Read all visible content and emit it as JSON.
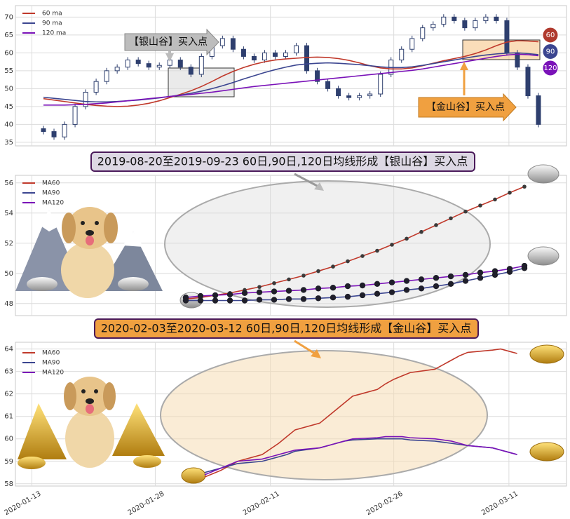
{
  "chart_data": [
    {
      "type": "candlestick",
      "candles": {
        "color": "#2e3f6e",
        "open": [
          38.8,
          38,
          36.5,
          40,
          45,
          49,
          52,
          55,
          56,
          58,
          57,
          56,
          56.5,
          58,
          56,
          54,
          59,
          62,
          64,
          61,
          59,
          58,
          60,
          59,
          60,
          62,
          55,
          52,
          50,
          48,
          47.5,
          48,
          48.5,
          54,
          58,
          61,
          64,
          67,
          68,
          70,
          69,
          67,
          69,
          70,
          69,
          60,
          56,
          48
        ],
        "high": [
          39.6,
          38.8,
          40.8,
          45.8,
          49.8,
          52.8,
          55.8,
          56.8,
          58.8,
          58.8,
          57.8,
          57.3,
          58.8,
          58.8,
          56.8,
          59.8,
          62.8,
          64.8,
          64.8,
          61.8,
          59.8,
          60.8,
          60.8,
          60.8,
          62.8,
          62.8,
          55.8,
          52.8,
          50.8,
          48.8,
          48.8,
          49.3,
          54.8,
          58.8,
          61.8,
          64.8,
          67.8,
          68.8,
          70.8,
          70.8,
          69.8,
          69.8,
          70.8,
          70.8,
          69.8,
          60.8,
          56.8,
          48.8
        ],
        "low": [
          37.2,
          35.7,
          35.7,
          39.2,
          44.2,
          48.2,
          51.2,
          54.2,
          55.2,
          56.2,
          55.2,
          55.2,
          55.7,
          55.2,
          53.2,
          53.2,
          58.2,
          61.2,
          60.2,
          58.2,
          57.2,
          57.2,
          58.2,
          58.2,
          59.2,
          54.2,
          51.2,
          49.2,
          47.2,
          46.7,
          46.7,
          47.2,
          47.7,
          53.2,
          57.2,
          60.2,
          63.2,
          66.2,
          67.2,
          68.2,
          66.2,
          66.2,
          68.2,
          68.2,
          59.2,
          55.2,
          47.2,
          39.2
        ],
        "close": [
          38,
          36.5,
          40,
          45,
          49,
          52,
          55,
          56,
          58,
          57,
          56,
          56.5,
          58,
          56,
          54,
          59,
          62,
          64,
          61,
          59,
          58,
          60,
          59,
          60,
          62,
          55,
          52,
          50,
          48,
          47.5,
          48,
          48.5,
          54,
          58,
          61,
          64,
          67,
          68,
          70,
          69,
          67,
          69,
          70,
          69,
          60,
          56,
          48,
          40
        ]
      },
      "series": [
        {
          "name": "60 ma",
          "color": "#c0392b",
          "values": [
            47.2,
            46.8,
            46.4,
            46,
            45.6,
            45.3,
            45.1,
            45,
            45.1,
            45.4,
            45.9,
            46.6,
            47.5,
            48.4,
            49.4,
            50.6,
            52,
            53.5,
            54.8,
            55.9,
            56.8,
            57.5,
            58,
            58.3,
            58.5,
            58.7,
            58.8,
            58.7,
            58.4,
            57.9,
            57.2,
            56.4,
            55.8,
            55.5,
            55.5,
            55.8,
            56.4,
            57.1,
            57.8,
            58.4,
            59,
            59.8,
            60.8,
            62,
            63,
            63.4,
            63.3,
            63.1
          ]
        },
        {
          "name": "90 ma",
          "color": "#3b4590",
          "values": [
            47.6,
            47.3,
            47,
            46.7,
            46.4,
            46.3,
            46.3,
            46.4,
            46.6,
            46.8,
            47.1,
            47.4,
            47.8,
            48.2,
            48.7,
            49.3,
            50,
            50.8,
            51.7,
            52.7,
            53.6,
            54.5,
            55.3,
            56,
            56.6,
            56.9,
            57.1,
            57.2,
            57.1,
            56.9,
            56.7,
            56.4,
            56.1,
            55.9,
            55.9,
            56.1,
            56.5,
            57,
            57.5,
            58,
            58.5,
            59,
            59.4,
            59.7,
            59.9,
            60,
            59.8,
            59.5
          ]
        },
        {
          "name": "120 ma",
          "color": "#7a12b8",
          "values": [
            45.4,
            45.4,
            45.4,
            45.5,
            45.6,
            45.8,
            46,
            46.3,
            46.6,
            46.9,
            47.2,
            47.5,
            47.8,
            48.1,
            48.4,
            48.7,
            49,
            49.4,
            49.8,
            50.2,
            50.6,
            50.9,
            51.2,
            51.5,
            51.8,
            52.1,
            52.4,
            52.7,
            53,
            53.3,
            53.6,
            53.9,
            54.2,
            54.5,
            54.8,
            55.1,
            55.5,
            56,
            56.5,
            57,
            57.5,
            58,
            58.5,
            59,
            59.4,
            59.6,
            59.5,
            59.2
          ]
        }
      ],
      "annotations": [
        "【银山谷】买入点",
        "【金山谷】买入点"
      ],
      "badges": [
        {
          "label": "60",
          "color": "#b03a2e"
        },
        {
          "label": "90",
          "color": "#3b4590"
        },
        {
          "label": "120",
          "color": "#7a12b8"
        }
      ],
      "ylim": [
        34,
        73.2
      ],
      "yticks": [
        35,
        40,
        45,
        50,
        55,
        60,
        65,
        70
      ],
      "grid": true
    },
    {
      "type": "line",
      "title": "2019-08-20至2019-09-23 60日,90日,120日均线形成【银山谷】买入点",
      "marker": true,
      "series": [
        {
          "name": "MA60",
          "color": "#c0392b",
          "values": [
            48.3,
            48.4,
            48.55,
            48.7,
            48.9,
            49.1,
            49.35,
            49.6,
            49.85,
            50.15,
            50.45,
            50.8,
            51.15,
            51.5,
            51.9,
            52.3,
            52.75,
            53.2,
            53.65,
            54.1,
            54.5,
            54.9,
            55.35,
            55.75
          ]
        },
        {
          "name": "MA90",
          "color": "#3b4590",
          "values": [
            48.2,
            48.2,
            48.2,
            48.2,
            48.2,
            48.25,
            48.25,
            48.3,
            48.3,
            48.35,
            48.4,
            48.45,
            48.55,
            48.65,
            48.75,
            48.9,
            49,
            49.15,
            49.3,
            49.5,
            49.7,
            49.9,
            50.1,
            50.35
          ]
        },
        {
          "name": "MA120",
          "color": "#7a12b8",
          "values": [
            48.4,
            48.5,
            48.55,
            48.6,
            48.7,
            48.75,
            48.8,
            48.85,
            48.9,
            49,
            49.05,
            49.15,
            49.2,
            49.3,
            49.4,
            49.5,
            49.6,
            49.7,
            49.8,
            49.9,
            50.05,
            50.15,
            50.3,
            50.5
          ]
        }
      ],
      "ylim": [
        47.2,
        56.5
      ],
      "yticks": [
        48,
        50,
        52,
        54,
        56
      ],
      "grid": true
    },
    {
      "type": "line",
      "title": "2020-02-03至2020-03-12 60日,90日,120日均线形成【金山谷】买入点",
      "x": [
        "2020-02-03",
        "2020-02-04",
        "2020-02-05",
        "2020-02-06",
        "2020-02-07",
        "2020-02-10",
        "2020-02-11",
        "2020-02-12",
        "2020-02-13",
        "2020-02-14",
        "2020-02-17",
        "2020-02-18",
        "2020-02-19",
        "2020-02-20",
        "2020-02-21",
        "2020-02-24",
        "2020-02-25",
        "2020-02-26",
        "2020-02-27",
        "2020-02-28",
        "2020-03-02",
        "2020-03-03",
        "2020-03-04",
        "2020-03-05",
        "2020-03-06",
        "2020-03-09",
        "2020-03-10",
        "2020-03-11",
        "2020-03-12"
      ],
      "series": [
        {
          "name": "MA60",
          "color": "#c0392b",
          "values": [
            58.3,
            58.45,
            58.6,
            58.8,
            59,
            59.3,
            59.55,
            59.8,
            60.1,
            60.4,
            60.7,
            61,
            61.3,
            61.6,
            61.9,
            62.2,
            62.45,
            62.65,
            62.8,
            62.95,
            63.1,
            63.3,
            63.5,
            63.7,
            63.85,
            63.95,
            64,
            63.9,
            63.8
          ]
        },
        {
          "name": "MA90",
          "color": "#3b4590",
          "values": [
            58.5,
            58.6,
            58.7,
            58.8,
            58.9,
            59,
            59.1,
            59.2,
            59.3,
            59.45,
            59.6,
            59.7,
            59.8,
            59.9,
            59.95,
            60,
            60,
            60,
            60,
            59.95,
            59.9,
            59.85,
            59.8,
            59.75,
            59.7,
            59.6,
            59.5,
            59.4,
            59.3
          ]
        },
        {
          "name": "MA120",
          "color": "#7a12b8",
          "values": [
            58.4,
            58.55,
            58.7,
            58.85,
            59,
            59.1,
            59.2,
            59.3,
            59.4,
            59.5,
            59.6,
            59.7,
            59.8,
            59.9,
            60,
            60.05,
            60.1,
            60.1,
            60.1,
            60.05,
            60,
            59.95,
            59.9,
            59.8,
            59.7,
            59.6,
            59.5,
            59.4,
            59.3
          ]
        }
      ],
      "xlim": [
        "2020-01-11",
        "2020-03-18"
      ],
      "xticks": [
        "2020-01-13",
        "2020-01-28",
        "2020-02-11",
        "2020-02-26",
        "2020-03-11"
      ],
      "ylim": [
        57.9,
        64.3
      ],
      "yticks": [
        58,
        59,
        60,
        61,
        62,
        63,
        64
      ],
      "grid": true
    }
  ]
}
